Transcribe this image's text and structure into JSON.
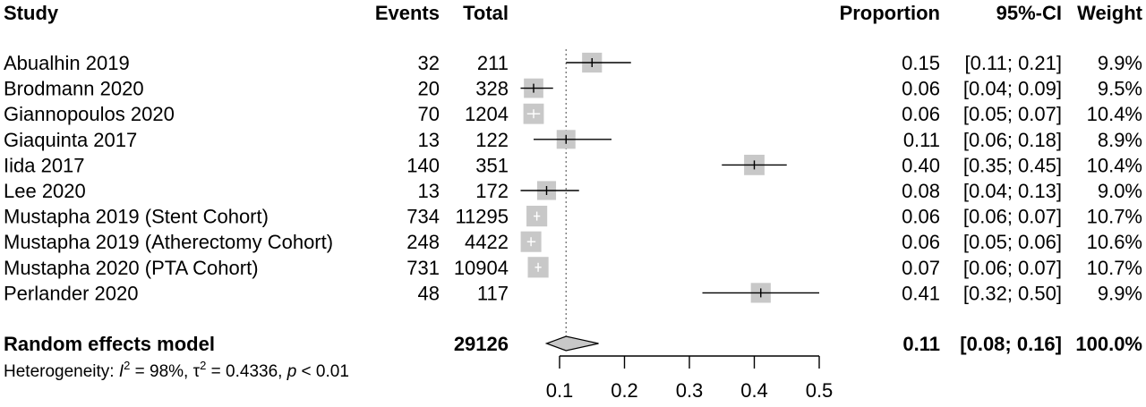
{
  "chart_data": {
    "type": "forest",
    "headers": {
      "study": "Study",
      "events": "Events",
      "total": "Total",
      "proportion": "Proportion",
      "ci": "95%-CI",
      "weight": "Weight"
    },
    "studies": [
      {
        "study": "Abualhin 2019",
        "events": "32",
        "total": "211",
        "proportion": "0.15",
        "ci_text": "[0.11; 0.21]",
        "weight": "9.9%",
        "est": 0.15,
        "lo": 0.11,
        "hi": 0.21,
        "w": 9.9
      },
      {
        "study": "Brodmann 2020",
        "events": "20",
        "total": "328",
        "proportion": "0.06",
        "ci_text": "[0.04; 0.09]",
        "weight": "9.5%",
        "est": 0.06,
        "lo": 0.04,
        "hi": 0.09,
        "w": 9.5
      },
      {
        "study": "Giannopoulos 2020",
        "events": "70",
        "total": "1204",
        "proportion": "0.06",
        "ci_text": "[0.05; 0.07]",
        "weight": "10.4%",
        "est": 0.06,
        "lo": 0.05,
        "hi": 0.07,
        "w": 10.4
      },
      {
        "study": "Giaquinta 2017",
        "events": "13",
        "total": "122",
        "proportion": "0.11",
        "ci_text": "[0.06; 0.18]",
        "weight": "8.9%",
        "est": 0.11,
        "lo": 0.06,
        "hi": 0.18,
        "w": 8.9
      },
      {
        "study": "Iida 2017",
        "events": "140",
        "total": "351",
        "proportion": "0.40",
        "ci_text": "[0.35; 0.45]",
        "weight": "10.4%",
        "est": 0.4,
        "lo": 0.35,
        "hi": 0.45,
        "w": 10.4
      },
      {
        "study": "Lee 2020",
        "events": "13",
        "total": "172",
        "proportion": "0.08",
        "ci_text": "[0.04; 0.13]",
        "weight": "9.0%",
        "est": 0.08,
        "lo": 0.04,
        "hi": 0.13,
        "w": 9.0
      },
      {
        "study": "Mustapha 2019 (Stent Cohort)",
        "events": "734",
        "total": "11295",
        "proportion": "0.06",
        "ci_text": "[0.06; 0.07]",
        "weight": "10.7%",
        "est": 0.065,
        "lo": 0.06,
        "hi": 0.07,
        "w": 10.7
      },
      {
        "study": "Mustapha 2019 (Atherectomy Cohort)",
        "events": "248",
        "total": "4422",
        "proportion": "0.06",
        "ci_text": "[0.05; 0.06]",
        "weight": "10.6%",
        "est": 0.056,
        "lo": 0.05,
        "hi": 0.063,
        "w": 10.6
      },
      {
        "study": "Mustapha 2020 (PTA Cohort)",
        "events": "731",
        "total": "10904",
        "proportion": "0.07",
        "ci_text": "[0.06; 0.07]",
        "weight": "10.7%",
        "est": 0.067,
        "lo": 0.062,
        "hi": 0.072,
        "w": 10.7
      },
      {
        "study": "Perlander 2020",
        "events": "48",
        "total": "117",
        "proportion": "0.41",
        "ci_text": "[0.32; 0.50]",
        "weight": "9.9%",
        "est": 0.41,
        "lo": 0.32,
        "hi": 0.5,
        "w": 9.9
      }
    ],
    "summary": {
      "label": "Random effects model",
      "total": "29126",
      "proportion": "0.11",
      "ci_text": "[0.08; 0.16]",
      "weight": "100.0%",
      "est": 0.11,
      "lo": 0.08,
      "hi": 0.16
    },
    "heterogeneity": {
      "prefix": "Heterogeneity: ",
      "i2_symbol": "I",
      "superscript": "2",
      "i2_value": " = 98%, ",
      "tau_symbol": "τ",
      "tau_value": " = 0.4336, ",
      "p_symbol": "p",
      "p_value": " < 0.01"
    },
    "x_axis": {
      "ticks": [
        0.1,
        0.2,
        0.3,
        0.4,
        0.5
      ],
      "tick_labels": [
        "0.1",
        "0.2",
        "0.3",
        "0.4",
        "0.5"
      ],
      "range": [
        0.1,
        0.5
      ]
    },
    "reference_line": 0.11,
    "colors": {
      "square": "#c8c8c8",
      "diamond": "#c8c8c8",
      "line": "#000000",
      "inner_tick_light": "#ffffff"
    }
  }
}
